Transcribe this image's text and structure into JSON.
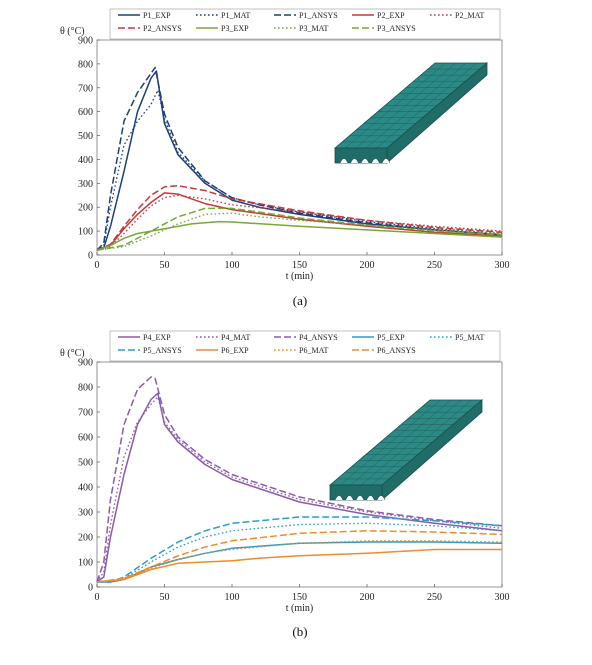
{
  "colors": {
    "P1": "#1f3f7a",
    "P2": "#c8383a",
    "P3": "#78a83a",
    "P4": "#8a5aad",
    "P5": "#2a9ec8",
    "P6": "#f08a2a",
    "model_face": "#2c8a86",
    "model_dark": "#1a4d4b"
  },
  "chart_data": [
    {
      "type": "line",
      "caption": "(a)",
      "ylabel": "θ (°C)",
      "xlabel": "t (min)",
      "xlim": [
        0,
        300
      ],
      "ylim": [
        0,
        900
      ],
      "xticks": [
        0,
        50,
        100,
        150,
        200,
        250,
        300
      ],
      "yticks": [
        0,
        100,
        200,
        300,
        400,
        500,
        600,
        700,
        800,
        900
      ],
      "grid": false,
      "legend_position": "top",
      "legend_layout": [
        [
          "P1_EXP",
          "P1_MAT",
          "P1_ANSYS",
          "P2_EXP",
          "P2_MAT"
        ],
        [
          "P2_ANSYS",
          "P3_EXP",
          "P3_MAT",
          "P3_ANSYS"
        ]
      ],
      "series": [
        {
          "name": "P1_EXP",
          "color": "P1",
          "dash": "solid",
          "points": [
            [
              0,
              20
            ],
            [
              5,
              30
            ],
            [
              10,
              120
            ],
            [
              20,
              350
            ],
            [
              30,
              600
            ],
            [
              40,
              740
            ],
            [
              44,
              770
            ],
            [
              50,
              550
            ],
            [
              60,
              420
            ],
            [
              80,
              300
            ],
            [
              100,
              230
            ],
            [
              120,
              200
            ],
            [
              150,
              170
            ],
            [
              200,
              130
            ],
            [
              250,
              105
            ],
            [
              300,
              85
            ]
          ]
        },
        {
          "name": "P1_MAT",
          "color": "P1",
          "dash": "dot",
          "points": [
            [
              0,
              20
            ],
            [
              5,
              40
            ],
            [
              10,
              200
            ],
            [
              20,
              460
            ],
            [
              30,
              560
            ],
            [
              40,
              630
            ],
            [
              45,
              690
            ],
            [
              50,
              570
            ],
            [
              60,
              430
            ],
            [
              80,
              310
            ],
            [
              100,
              240
            ],
            [
              120,
              210
            ],
            [
              150,
              180
            ],
            [
              200,
              140
            ],
            [
              250,
              110
            ],
            [
              300,
              90
            ]
          ]
        },
        {
          "name": "P1_ANSYS",
          "color": "P1",
          "dash": "dash",
          "points": [
            [
              0,
              20
            ],
            [
              5,
              50
            ],
            [
              10,
              250
            ],
            [
              20,
              560
            ],
            [
              30,
              680
            ],
            [
              40,
              760
            ],
            [
              43,
              785
            ],
            [
              50,
              590
            ],
            [
              60,
              450
            ],
            [
              80,
              310
            ],
            [
              100,
              240
            ],
            [
              120,
              210
            ],
            [
              150,
              175
            ],
            [
              200,
              135
            ],
            [
              250,
              105
            ],
            [
              300,
              85
            ]
          ]
        },
        {
          "name": "P2_EXP",
          "color": "P2",
          "dash": "solid",
          "points": [
            [
              0,
              20
            ],
            [
              10,
              40
            ],
            [
              20,
              110
            ],
            [
              30,
              170
            ],
            [
              40,
              220
            ],
            [
              50,
              260
            ],
            [
              60,
              255
            ],
            [
              80,
              215
            ],
            [
              100,
              190
            ],
            [
              150,
              150
            ],
            [
              200,
              120
            ],
            [
              250,
              95
            ],
            [
              300,
              80
            ]
          ]
        },
        {
          "name": "P2_MAT",
          "color": "P2",
          "dash": "dot",
          "points": [
            [
              0,
              20
            ],
            [
              10,
              35
            ],
            [
              20,
              90
            ],
            [
              30,
              150
            ],
            [
              40,
              205
            ],
            [
              50,
              240
            ],
            [
              60,
              250
            ],
            [
              80,
              235
            ],
            [
              100,
              210
            ],
            [
              150,
              180
            ],
            [
              200,
              145
            ],
            [
              250,
              120
            ],
            [
              300,
              100
            ]
          ]
        },
        {
          "name": "P2_ANSYS",
          "color": "P2",
          "dash": "dash",
          "points": [
            [
              0,
              20
            ],
            [
              10,
              45
            ],
            [
              20,
              120
            ],
            [
              30,
              190
            ],
            [
              40,
              250
            ],
            [
              50,
              285
            ],
            [
              60,
              290
            ],
            [
              80,
              270
            ],
            [
              100,
              235
            ],
            [
              150,
              185
            ],
            [
              200,
              145
            ],
            [
              250,
              115
            ],
            [
              300,
              95
            ]
          ]
        },
        {
          "name": "P3_EXP",
          "color": "P3",
          "dash": "solid",
          "points": [
            [
              0,
              20
            ],
            [
              10,
              40
            ],
            [
              20,
              70
            ],
            [
              30,
              90
            ],
            [
              40,
              100
            ],
            [
              50,
              110
            ],
            [
              70,
              130
            ],
            [
              90,
              140
            ],
            [
              100,
              138
            ],
            [
              150,
              120
            ],
            [
              200,
              105
            ],
            [
              250,
              90
            ],
            [
              300,
              75
            ]
          ]
        },
        {
          "name": "P3_MAT",
          "color": "P3",
          "dash": "dot",
          "points": [
            [
              0,
              20
            ],
            [
              20,
              35
            ],
            [
              40,
              80
            ],
            [
              60,
              130
            ],
            [
              80,
              170
            ],
            [
              100,
              175
            ],
            [
              120,
              160
            ],
            [
              150,
              145
            ],
            [
              200,
              125
            ],
            [
              250,
              105
            ],
            [
              300,
              90
            ]
          ]
        },
        {
          "name": "P3_ANSYS",
          "color": "P3",
          "dash": "dash",
          "points": [
            [
              0,
              20
            ],
            [
              20,
              40
            ],
            [
              40,
              100
            ],
            [
              60,
              160
            ],
            [
              80,
              195
            ],
            [
              100,
              195
            ],
            [
              120,
              180
            ],
            [
              150,
              155
            ],
            [
              200,
              125
            ],
            [
              250,
              100
            ],
            [
              300,
              85
            ]
          ]
        }
      ]
    },
    {
      "type": "line",
      "caption": "(b)",
      "ylabel": "θ (°C)",
      "xlabel": "t (min)",
      "xlim": [
        0,
        300
      ],
      "ylim": [
        0,
        900
      ],
      "xticks": [
        0,
        50,
        100,
        150,
        200,
        250,
        300
      ],
      "yticks": [
        0,
        100,
        200,
        300,
        400,
        500,
        600,
        700,
        800,
        900
      ],
      "grid": false,
      "legend_position": "top",
      "legend_layout": [
        [
          "P4_EXP",
          "P4_MAT",
          "P4_ANSYS",
          "P5_EXP",
          "P5_MAT"
        ],
        [
          "P5_ANSYS",
          "P6_EXP",
          "P6_MAT",
          "P6_ANSYS"
        ]
      ],
      "series": [
        {
          "name": "P4_EXP",
          "color": "P4",
          "dash": "solid",
          "points": [
            [
              0,
              20
            ],
            [
              5,
              40
            ],
            [
              10,
              200
            ],
            [
              20,
              450
            ],
            [
              30,
              650
            ],
            [
              40,
              750
            ],
            [
              45,
              775
            ],
            [
              50,
              650
            ],
            [
              60,
              580
            ],
            [
              80,
              490
            ],
            [
              100,
              430
            ],
            [
              150,
              340
            ],
            [
              200,
              290
            ],
            [
              250,
              255
            ],
            [
              300,
              225
            ]
          ]
        },
        {
          "name": "P4_MAT",
          "color": "P4",
          "dash": "dot",
          "points": [
            [
              0,
              20
            ],
            [
              5,
              60
            ],
            [
              10,
              250
            ],
            [
              20,
              520
            ],
            [
              30,
              660
            ],
            [
              40,
              730
            ],
            [
              45,
              760
            ],
            [
              50,
              660
            ],
            [
              60,
              590
            ],
            [
              80,
              500
            ],
            [
              100,
              440
            ],
            [
              150,
              350
            ],
            [
              200,
              300
            ],
            [
              250,
              265
            ],
            [
              300,
              235
            ]
          ]
        },
        {
          "name": "P4_ANSYS",
          "color": "P4",
          "dash": "dash",
          "points": [
            [
              0,
              20
            ],
            [
              5,
              100
            ],
            [
              10,
              350
            ],
            [
              20,
              650
            ],
            [
              30,
              790
            ],
            [
              40,
              840
            ],
            [
              43,
              835
            ],
            [
              50,
              690
            ],
            [
              60,
              600
            ],
            [
              80,
              510
            ],
            [
              100,
              450
            ],
            [
              150,
              360
            ],
            [
              200,
              305
            ],
            [
              250,
              270
            ],
            [
              300,
              245
            ]
          ]
        },
        {
          "name": "P5_EXP",
          "color": "P5",
          "dash": "solid",
          "points": [
            [
              0,
              20
            ],
            [
              10,
              20
            ],
            [
              20,
              30
            ],
            [
              30,
              55
            ],
            [
              40,
              80
            ],
            [
              60,
              110
            ],
            [
              80,
              135
            ],
            [
              100,
              155
            ],
            [
              150,
              175
            ],
            [
              200,
              180
            ],
            [
              250,
              180
            ],
            [
              300,
              175
            ]
          ]
        },
        {
          "name": "P5_MAT",
          "color": "P5",
          "dash": "dot",
          "points": [
            [
              0,
              20
            ],
            [
              10,
              20
            ],
            [
              20,
              35
            ],
            [
              40,
              100
            ],
            [
              60,
              160
            ],
            [
              80,
              200
            ],
            [
              100,
              225
            ],
            [
              150,
              250
            ],
            [
              200,
              255
            ],
            [
              250,
              245
            ],
            [
              300,
              225
            ]
          ]
        },
        {
          "name": "P5_ANSYS",
          "color": "P5",
          "dash": "dash",
          "points": [
            [
              0,
              20
            ],
            [
              10,
              20
            ],
            [
              20,
              40
            ],
            [
              40,
              115
            ],
            [
              60,
              180
            ],
            [
              80,
              225
            ],
            [
              100,
              255
            ],
            [
              150,
              280
            ],
            [
              200,
              280
            ],
            [
              250,
              265
            ],
            [
              300,
              245
            ]
          ]
        },
        {
          "name": "P6_EXP",
          "color": "P6",
          "dash": "solid",
          "points": [
            [
              0,
              20
            ],
            [
              20,
              30
            ],
            [
              40,
              70
            ],
            [
              60,
              95
            ],
            [
              80,
              100
            ],
            [
              100,
              105
            ],
            [
              120,
              115
            ],
            [
              150,
              125
            ],
            [
              200,
              135
            ],
            [
              250,
              150
            ],
            [
              300,
              150
            ]
          ]
        },
        {
          "name": "P6_MAT",
          "color": "P6",
          "dash": "dot",
          "points": [
            [
              0,
              20
            ],
            [
              20,
              35
            ],
            [
              40,
              75
            ],
            [
              60,
              110
            ],
            [
              80,
              135
            ],
            [
              100,
              150
            ],
            [
              150,
              175
            ],
            [
              200,
              185
            ],
            [
              250,
              185
            ],
            [
              300,
              180
            ]
          ]
        },
        {
          "name": "P6_ANSYS",
          "color": "P6",
          "dash": "dash",
          "points": [
            [
              0,
              20
            ],
            [
              20,
              35
            ],
            [
              40,
              80
            ],
            [
              60,
              125
            ],
            [
              80,
              160
            ],
            [
              100,
              185
            ],
            [
              150,
              215
            ],
            [
              200,
              225
            ],
            [
              250,
              220
            ],
            [
              300,
              210
            ]
          ]
        }
      ]
    }
  ]
}
